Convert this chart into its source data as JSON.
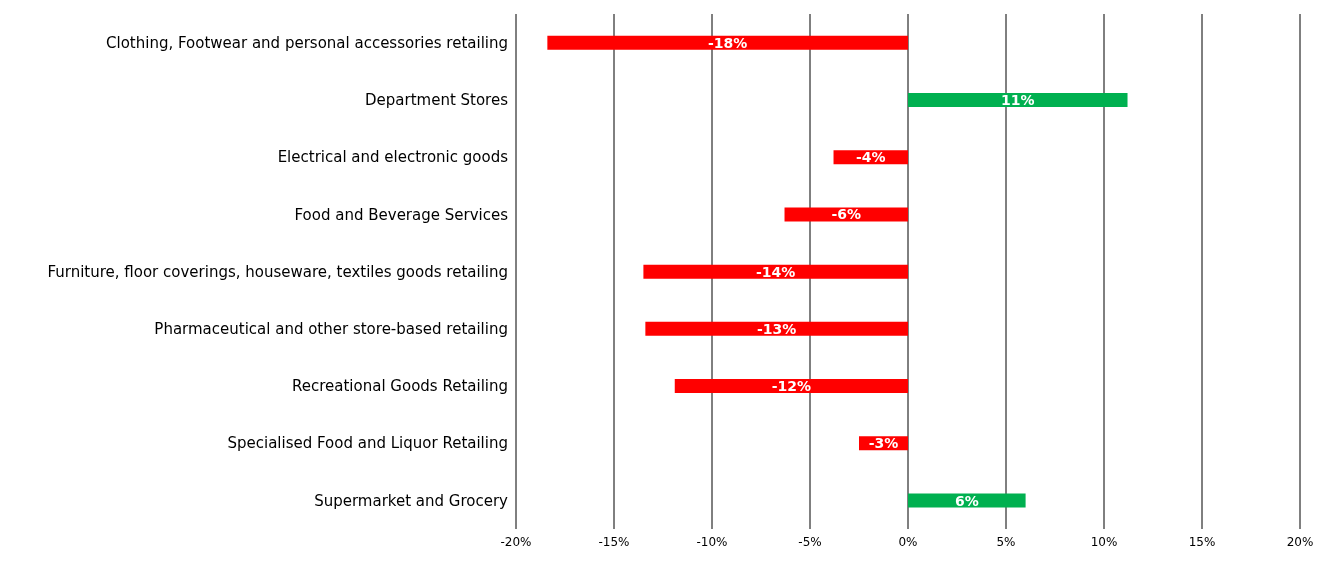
{
  "chart_data": {
    "type": "bar",
    "orientation": "horizontal",
    "categories": [
      "Clothing, Footwear and personal accessories retailing",
      "Department Stores",
      "Electrical and electronic goods",
      "Food and Beverage Services",
      "Furniture, floor coverings, houseware, textiles goods retailing",
      "Pharmaceutical and other store-based retailing",
      "Recreational Goods Retailing",
      "Specialised Food and Liquor Retailing",
      "Supermarket and Grocery"
    ],
    "values": [
      -18.4,
      11.2,
      -3.8,
      -6.3,
      -13.5,
      -13.4,
      -11.9,
      -2.5,
      6.0
    ],
    "colors": [
      "#ff0000",
      "#00b050",
      "#ff0000",
      "#ff0000",
      "#ff0000",
      "#ff0000",
      "#ff0000",
      "#ff0000",
      "#00b050"
    ],
    "value_labels": [
      "-18%",
      "11%",
      "-4%",
      "-6%",
      "-14%",
      "-13%",
      "-12%",
      "-3%",
      "6%"
    ],
    "xlim": [
      -20,
      20
    ],
    "xticks": [
      {
        "value": -20,
        "label": "-20%"
      },
      {
        "value": -15,
        "label": "-15%"
      },
      {
        "value": -10,
        "label": "-10%"
      },
      {
        "value": -5,
        "label": "-5%"
      },
      {
        "value": 0,
        "label": "0%"
      },
      {
        "value": 5,
        "label": "5%"
      },
      {
        "value": 10,
        "label": "10%"
      },
      {
        "value": 15,
        "label": "15%"
      },
      {
        "value": 20,
        "label": "20%"
      }
    ],
    "grid": "x",
    "legend": false
  }
}
